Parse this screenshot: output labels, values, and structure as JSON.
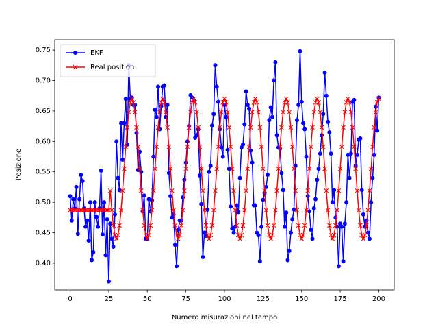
{
  "chart_data": {
    "type": "line",
    "xlabel": "Numero misurazioni nel tempo",
    "ylabel": "Posizione",
    "legend": "upper left",
    "xlim": [
      -10,
      210
    ],
    "ylim": [
      0.356,
      0.767
    ],
    "xticks": [
      0,
      25,
      50,
      75,
      100,
      125,
      150,
      175,
      200
    ],
    "yticks": [
      {
        "value": 0.4,
        "label": "0.40"
      },
      0.45,
      {
        "value": 0.5,
        "label": "0.50"
      },
      0.55,
      {
        "value": 0.6,
        "label": "0.60"
      },
      0.65,
      {
        "value": 0.7,
        "label": "0.70"
      },
      0.75
    ],
    "x": [
      0,
      1,
      2,
      3,
      4,
      5,
      6,
      7,
      8,
      9,
      10,
      11,
      12,
      13,
      14,
      15,
      16,
      17,
      18,
      19,
      20,
      21,
      22,
      23,
      24,
      25,
      26,
      27,
      28,
      29,
      30,
      31,
      32,
      33,
      34,
      35,
      36,
      37,
      38,
      39,
      40,
      41,
      42,
      43,
      44,
      45,
      46,
      47,
      48,
      49,
      50,
      51,
      52,
      53,
      54,
      55,
      56,
      57,
      58,
      59,
      60,
      61,
      62,
      63,
      64,
      65,
      66,
      67,
      68,
      69,
      70,
      71,
      72,
      73,
      74,
      75,
      76,
      77,
      78,
      79,
      80,
      81,
      82,
      83,
      84,
      85,
      86,
      87,
      88,
      89,
      90,
      91,
      92,
      93,
      94,
      95,
      96,
      97,
      98,
      99,
      100,
      101,
      102,
      103,
      104,
      105,
      106,
      107,
      108,
      109,
      110,
      111,
      112,
      113,
      114,
      115,
      116,
      117,
      118,
      119,
      120,
      121,
      122,
      123,
      124,
      125,
      126,
      127,
      128,
      129,
      130,
      131,
      132,
      133,
      134,
      135,
      136,
      137,
      138,
      139,
      140,
      141,
      142,
      143,
      144,
      145,
      146,
      147,
      148,
      149,
      150,
      151,
      152,
      153,
      154,
      155,
      156,
      157,
      158,
      159,
      160,
      161,
      162,
      163,
      164,
      165,
      166,
      167,
      168,
      169,
      170,
      171,
      172,
      173,
      174,
      175,
      176,
      177,
      178,
      179,
      180,
      181,
      182,
      183,
      184,
      185,
      186,
      187,
      188,
      189,
      190,
      191,
      192,
      193,
      194,
      195,
      196,
      197,
      198,
      199,
      200
    ],
    "series": [
      {
        "name": "EKF",
        "color": "#0000ff",
        "marker": "o",
        "values": [
          0.51,
          0.47,
          0.505,
          0.49,
          0.525,
          0.448,
          0.505,
          0.545,
          0.535,
          0.49,
          0.46,
          0.47,
          0.437,
          0.5,
          0.405,
          0.418,
          0.5,
          0.476,
          0.46,
          0.49,
          0.552,
          0.447,
          0.5,
          0.413,
          0.472,
          0.37,
          0.465,
          0.44,
          0.427,
          0.48,
          0.6,
          0.54,
          0.52,
          0.63,
          0.57,
          0.63,
          0.67,
          0.595,
          0.725,
          0.67,
          0.672,
          0.66,
          0.66,
          0.614,
          0.553,
          0.583,
          0.55,
          0.485,
          0.511,
          0.44,
          0.44,
          0.505,
          0.485,
          0.503,
          0.575,
          0.652,
          0.64,
          0.69,
          0.62,
          0.658,
          0.69,
          0.692,
          0.64,
          0.66,
          0.548,
          0.51,
          0.475,
          0.48,
          0.43,
          0.395,
          0.455,
          0.47,
          0.47,
          0.508,
          0.537,
          0.565,
          0.6,
          0.625,
          0.676,
          0.672,
          0.668,
          0.606,
          0.61,
          0.62,
          0.544,
          0.497,
          0.41,
          0.45,
          0.445,
          0.488,
          0.55,
          0.56,
          0.626,
          0.645,
          0.725,
          0.69,
          0.665,
          0.62,
          0.59,
          0.575,
          0.66,
          0.64,
          0.586,
          0.555,
          0.493,
          0.457,
          0.45,
          0.46,
          0.495,
          0.484,
          0.54,
          0.59,
          0.595,
          0.628,
          0.682,
          0.66,
          0.654,
          0.585,
          0.565,
          0.495,
          0.495,
          0.45,
          0.446,
          0.403,
          0.46,
          0.504,
          0.515,
          0.525,
          0.545,
          0.635,
          0.656,
          0.64,
          0.7,
          0.73,
          0.61,
          0.59,
          0.588,
          0.548,
          0.52,
          0.46,
          0.483,
          0.405,
          0.42,
          0.45,
          0.472,
          0.488,
          0.56,
          0.635,
          0.66,
          0.748,
          0.665,
          0.63,
          0.62,
          0.575,
          0.51,
          0.485,
          0.455,
          0.44,
          0.49,
          0.505,
          0.537,
          0.555,
          0.58,
          0.61,
          0.645,
          0.713,
          0.675,
          0.632,
          0.615,
          0.58,
          0.5,
          0.52,
          0.475,
          0.46,
          0.395,
          0.465,
          0.46,
          0.403,
          0.465,
          0.5,
          0.578,
          0.54,
          0.58,
          0.665,
          0.668,
          0.56,
          0.578,
          0.603,
          0.605,
          0.52,
          0.48,
          0.46,
          0.47,
          0.45,
          0.44,
          0.5,
          0.54,
          0.578,
          0.657,
          0.618,
          0.672
        ]
      },
      {
        "name": "Real position",
        "color": "#ff0000",
        "marker": "x",
        "values": [
          0.487,
          0.487,
          0.487,
          0.487,
          0.487,
          0.487,
          0.487,
          0.487,
          0.487,
          0.487,
          0.487,
          0.487,
          0.487,
          0.487,
          0.487,
          0.487,
          0.487,
          0.487,
          0.487,
          0.487,
          0.487,
          0.487,
          0.487,
          0.487,
          0.487,
          0.487,
          0.519,
          0.487,
          0.462,
          0.446,
          0.44,
          0.446,
          0.462,
          0.487,
          0.519,
          0.555,
          0.591,
          0.623,
          0.648,
          0.664,
          0.67,
          0.664,
          0.648,
          0.623,
          0.591,
          0.555,
          0.519,
          0.487,
          0.462,
          0.446,
          0.44,
          0.446,
          0.462,
          0.487,
          0.519,
          0.555,
          0.591,
          0.623,
          0.648,
          0.664,
          0.67,
          0.664,
          0.648,
          0.623,
          0.591,
          0.555,
          0.519,
          0.487,
          0.462,
          0.446,
          0.44,
          0.446,
          0.462,
          0.487,
          0.519,
          0.555,
          0.591,
          0.623,
          0.648,
          0.664,
          0.67,
          0.664,
          0.648,
          0.623,
          0.591,
          0.555,
          0.519,
          0.487,
          0.462,
          0.446,
          0.44,
          0.446,
          0.462,
          0.487,
          0.519,
          0.555,
          0.591,
          0.623,
          0.648,
          0.664,
          0.67,
          0.664,
          0.648,
          0.623,
          0.591,
          0.555,
          0.519,
          0.487,
          0.462,
          0.446,
          0.44,
          0.446,
          0.462,
          0.487,
          0.519,
          0.555,
          0.591,
          0.623,
          0.648,
          0.664,
          0.67,
          0.664,
          0.648,
          0.623,
          0.591,
          0.555,
          0.519,
          0.487,
          0.462,
          0.446,
          0.44,
          0.446,
          0.462,
          0.487,
          0.519,
          0.555,
          0.591,
          0.623,
          0.648,
          0.664,
          0.67,
          0.664,
          0.648,
          0.623,
          0.591,
          0.555,
          0.519,
          0.487,
          0.462,
          0.446,
          0.44,
          0.446,
          0.462,
          0.487,
          0.519,
          0.555,
          0.591,
          0.623,
          0.648,
          0.664,
          0.67,
          0.664,
          0.648,
          0.623,
          0.591,
          0.555,
          0.519,
          0.487,
          0.462,
          0.446,
          0.44,
          0.446,
          0.462,
          0.487,
          0.519,
          0.555,
          0.591,
          0.623,
          0.648,
          0.664,
          0.67,
          0.664,
          0.648,
          0.623,
          0.591,
          0.555,
          0.519,
          0.487,
          0.462,
          0.446,
          0.44,
          0.446,
          0.462,
          0.487,
          0.519,
          0.555,
          0.591,
          0.623,
          0.648,
          0.664,
          0.67
        ]
      }
    ]
  }
}
